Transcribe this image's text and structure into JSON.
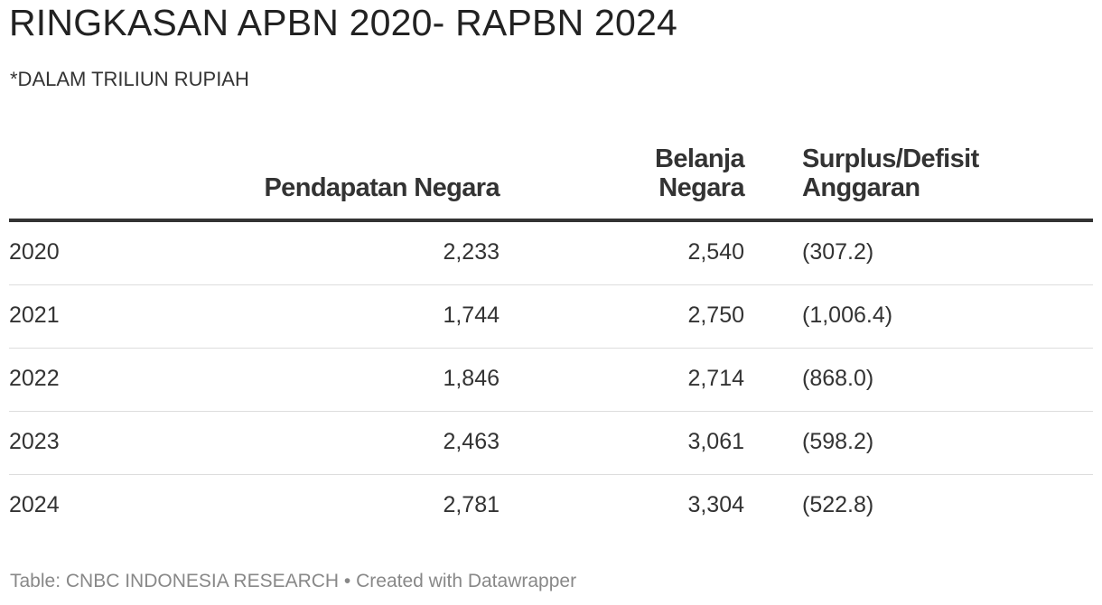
{
  "title": "RINGKASAN APBN 2020- RAPBN 2024",
  "subtitle": "*DALAM TRILIUN RUPIAH",
  "chart_data": {
    "type": "table",
    "columns": [
      "",
      "Pendapatan Negara",
      "Belanja Negara",
      "Surplus/Defisit Anggaran"
    ],
    "rows": [
      [
        "2020",
        "2,233",
        "2,540",
        "(307.2)"
      ],
      [
        "2021",
        "1,744",
        "2,750",
        "(1,006.4)"
      ],
      [
        "2022",
        "1,846",
        "2,714",
        "(868.0)"
      ],
      [
        "2023",
        "2,463",
        "3,061",
        "(598.2)"
      ],
      [
        "2024",
        "2,781",
        "3,304",
        "(522.8)"
      ]
    ]
  },
  "footer": "Table: CNBC INDONESIA RESEARCH • Created with Datawrapper"
}
